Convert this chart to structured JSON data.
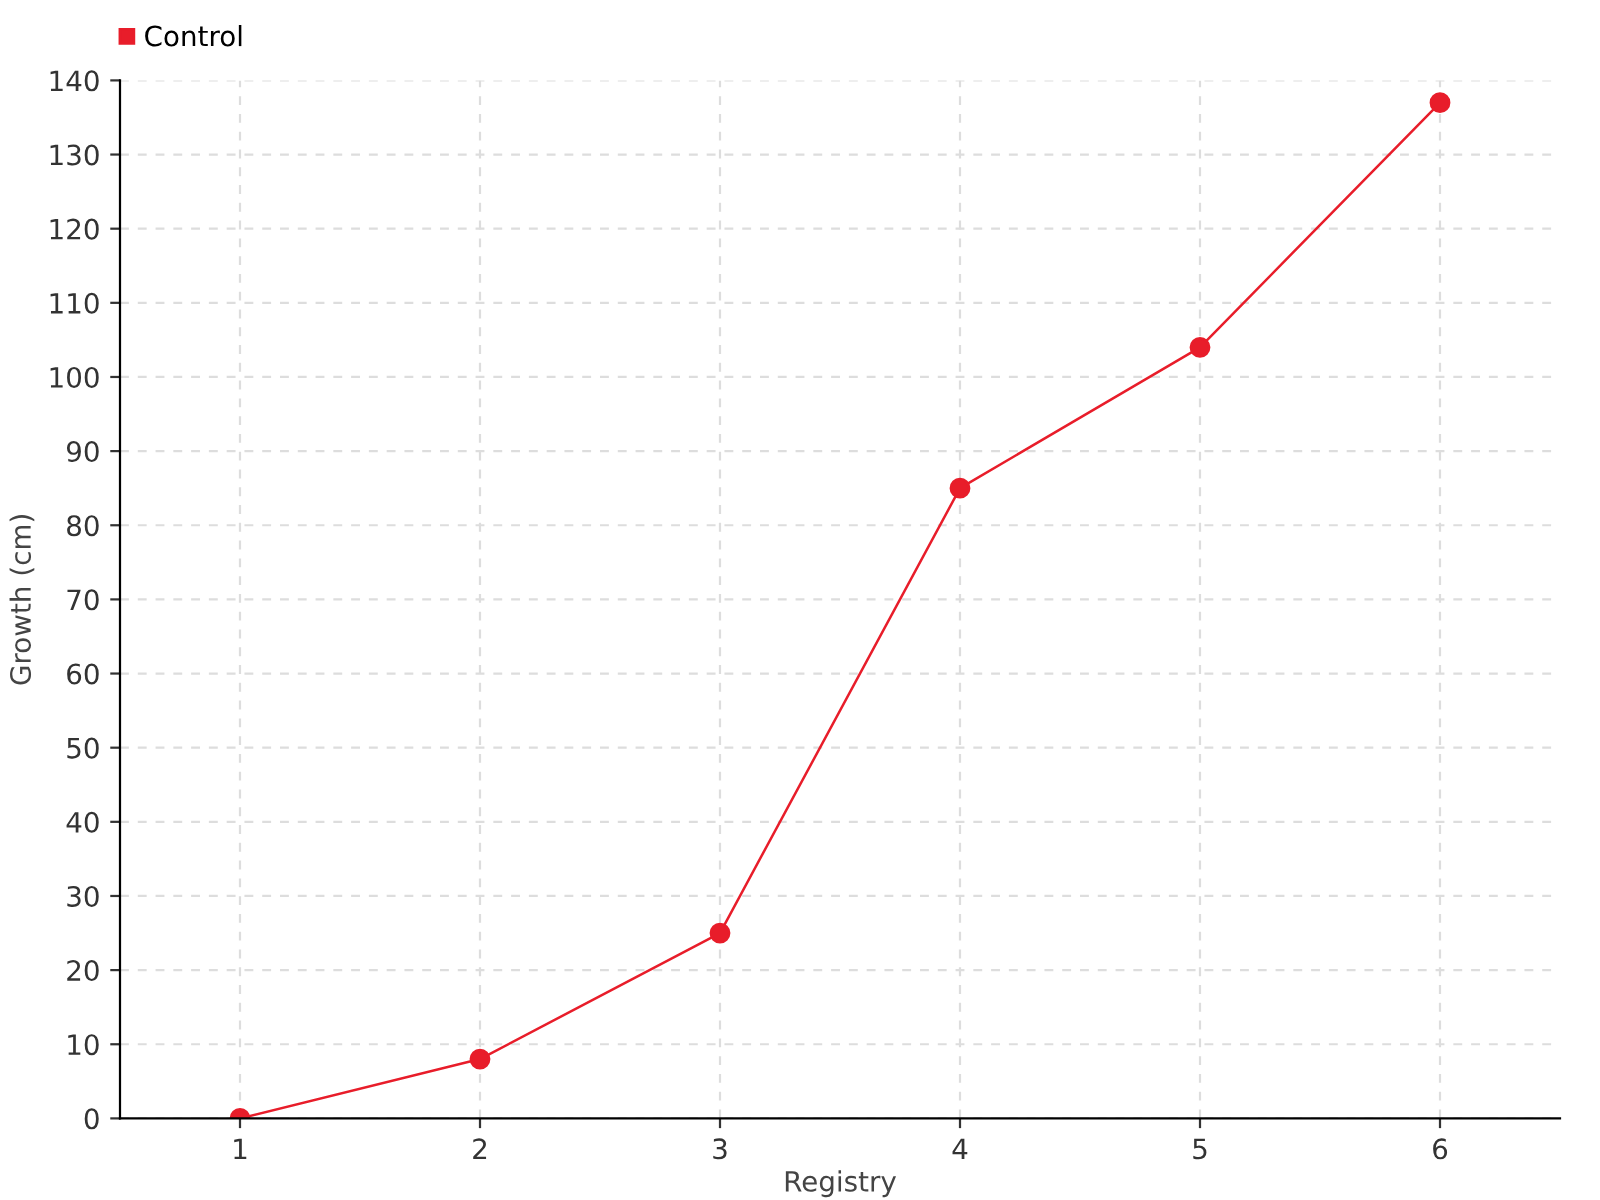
{
  "chart_data": {
    "type": "line",
    "xlabel": "Registry",
    "ylabel": "Growth (cm)",
    "x": [
      1,
      2,
      3,
      4,
      5,
      6
    ],
    "series": [
      {
        "name": "Control",
        "color": "#e81d2a",
        "values": [
          0,
          8,
          25,
          85,
          104,
          137
        ]
      }
    ],
    "xlim": [
      0.5,
      6.5
    ],
    "xticks": [
      1,
      2,
      3,
      4,
      5,
      6
    ],
    "ylim": [
      0,
      140
    ],
    "yticks": [
      0,
      10,
      20,
      30,
      40,
      50,
      60,
      70,
      80,
      90,
      100,
      110,
      120,
      130,
      140
    ],
    "grid": true,
    "legend": "top left",
    "marker": "circle",
    "line_style": "solid"
  }
}
